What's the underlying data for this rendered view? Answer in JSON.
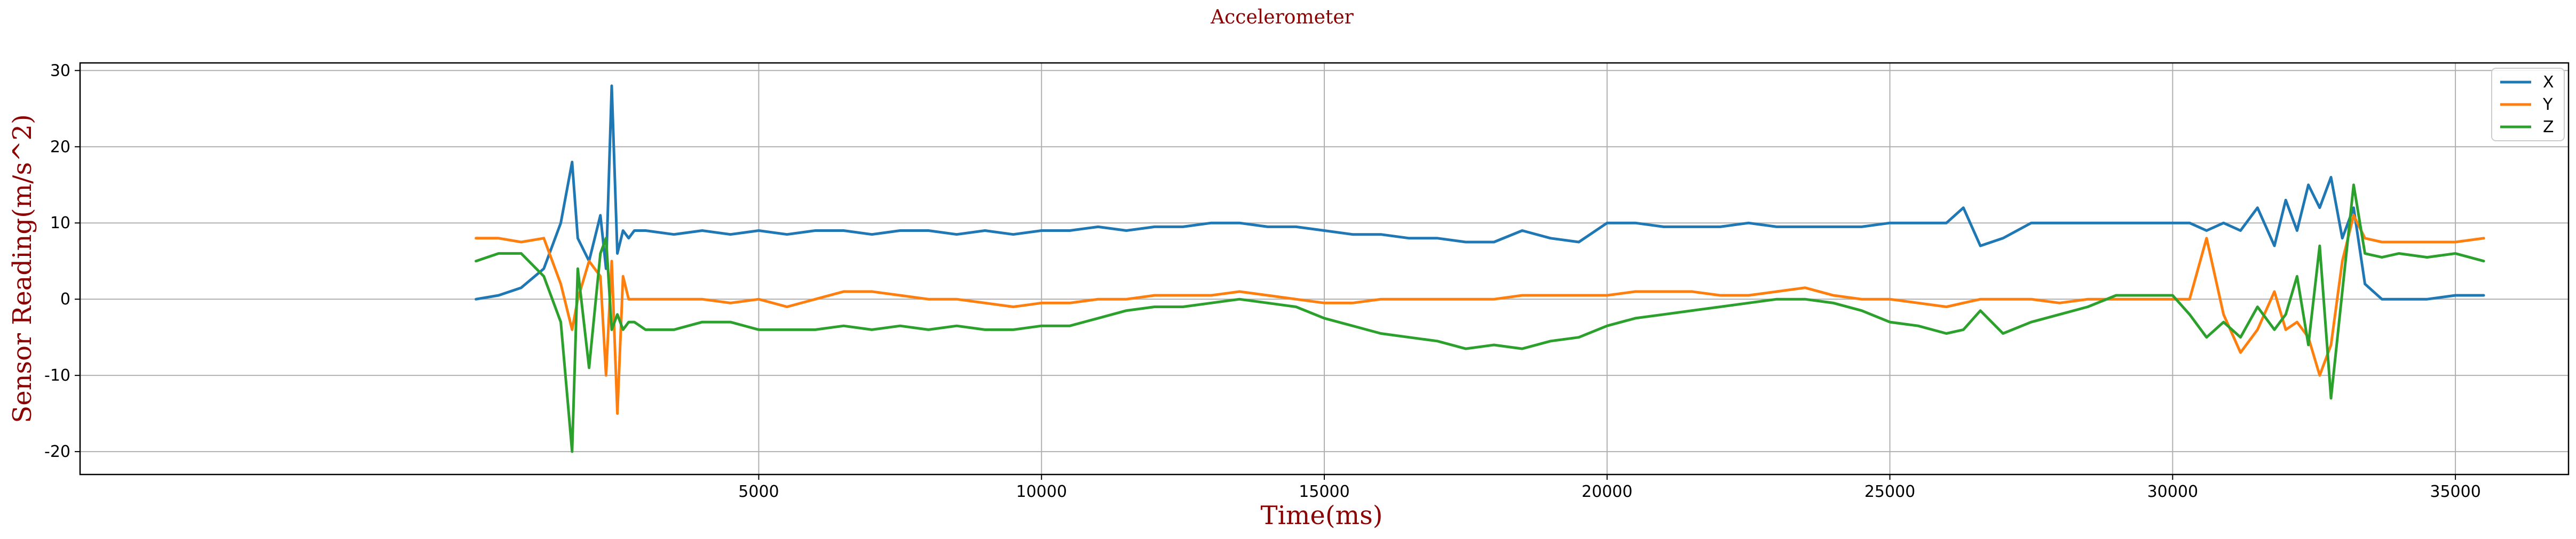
{
  "chart_data": {
    "type": "line",
    "title": "Accelerometer",
    "xlabel": "Time(ms)",
    "ylabel": "Sensor Reading(m/s^2)",
    "xlim": [
      -7000,
      37000
    ],
    "ylim": [
      -23,
      31
    ],
    "xticks": [
      5000,
      10000,
      15000,
      20000,
      25000,
      30000,
      35000
    ],
    "yticks": [
      -20,
      -10,
      0,
      10,
      20,
      30
    ],
    "grid": true,
    "legend_position": "top-right",
    "x": [
      0,
      400,
      800,
      1200,
      1500,
      1700,
      1800,
      2000,
      2200,
      2300,
      2400,
      2500,
      2600,
      2700,
      2800,
      3000,
      3500,
      4000,
      4500,
      5000,
      5500,
      6000,
      6500,
      7000,
      7500,
      8000,
      8500,
      9000,
      9500,
      10000,
      10500,
      11000,
      11500,
      12000,
      12500,
      13000,
      13500,
      14000,
      14500,
      15000,
      15500,
      16000,
      16500,
      17000,
      17500,
      18000,
      18500,
      19000,
      19500,
      20000,
      20500,
      21000,
      21500,
      22000,
      22500,
      23000,
      23500,
      24000,
      24500,
      25000,
      25500,
      26000,
      26300,
      26600,
      27000,
      27500,
      28000,
      28500,
      29000,
      29500,
      30000,
      30300,
      30600,
      30900,
      31200,
      31500,
      31800,
      32000,
      32200,
      32400,
      32600,
      32800,
      33000,
      33200,
      33400,
      33700,
      34000,
      34500,
      35000,
      35500
    ],
    "series": [
      {
        "name": "X",
        "color": "#1f77b4",
        "values": [
          0,
          0.5,
          1.5,
          4,
          10,
          18,
          8,
          5,
          11,
          4,
          28,
          6,
          9,
          8,
          9,
          9,
          8.5,
          9,
          8.5,
          9,
          8.5,
          9,
          9,
          8.5,
          9,
          9,
          8.5,
          9,
          8.5,
          9,
          9,
          9.5,
          9,
          9.5,
          9.5,
          10,
          10,
          9.5,
          9.5,
          9,
          8.5,
          8.5,
          8,
          8,
          7.5,
          7.5,
          9,
          8,
          7.5,
          10,
          10,
          9.5,
          9.5,
          9.5,
          10,
          9.5,
          9.5,
          9.5,
          9.5,
          10,
          10,
          10,
          12,
          7,
          8,
          10,
          10,
          10,
          10,
          10,
          10,
          10,
          9,
          10,
          9,
          12,
          7,
          13,
          9,
          15,
          12,
          16,
          8,
          12,
          2,
          0,
          0,
          0,
          0.5,
          0.5
        ]
      },
      {
        "name": "Y",
        "color": "#ff7f0e",
        "values": [
          8,
          8,
          7.5,
          8,
          2,
          -4,
          0,
          5,
          3,
          -10,
          5,
          -15,
          3,
          0,
          0,
          0,
          0,
          0,
          -0.5,
          0,
          -1,
          0,
          1,
          1,
          0.5,
          0,
          0,
          -0.5,
          -1,
          -0.5,
          -0.5,
          0,
          0,
          0.5,
          0.5,
          0.5,
          1,
          0.5,
          0,
          -0.5,
          -0.5,
          0,
          0,
          0,
          0,
          0,
          0.5,
          0.5,
          0.5,
          0.5,
          1,
          1,
          1,
          0.5,
          0.5,
          1,
          1.5,
          0.5,
          0,
          0,
          -0.5,
          -1,
          -0.5,
          0,
          0,
          0,
          -0.5,
          0,
          0,
          0,
          0,
          0,
          8,
          -2,
          -7,
          -4,
          1,
          -4,
          -3,
          -5,
          -10,
          -6,
          5,
          11,
          8,
          7.5,
          7.5,
          7.5,
          7.5,
          8
        ]
      },
      {
        "name": "Z",
        "color": "#2ca02c",
        "values": [
          5,
          6,
          6,
          3,
          -3,
          -20,
          4,
          -9,
          6,
          8,
          -4,
          -2,
          -4,
          -3,
          -3,
          -4,
          -4,
          -3,
          -3,
          -4,
          -4,
          -4,
          -3.5,
          -4,
          -3.5,
          -4,
          -3.5,
          -4,
          -4,
          -3.5,
          -3.5,
          -2.5,
          -1.5,
          -1,
          -1,
          -0.5,
          0,
          -0.5,
          -1,
          -2.5,
          -3.5,
          -4.5,
          -5,
          -5.5,
          -6.5,
          -6,
          -6.5,
          -5.5,
          -5,
          -3.5,
          -2.5,
          -2,
          -1.5,
          -1,
          -0.5,
          0,
          0,
          -0.5,
          -1.5,
          -3,
          -3.5,
          -4.5,
          -4,
          -1.5,
          -4.5,
          -3,
          -2,
          -1,
          0.5,
          0.5,
          0.5,
          -2,
          -5,
          -3,
          -5,
          -1,
          -4,
          -2,
          3,
          -6,
          7,
          -13,
          1,
          15,
          6,
          5.5,
          6,
          5.5,
          6,
          5
        ]
      }
    ]
  }
}
